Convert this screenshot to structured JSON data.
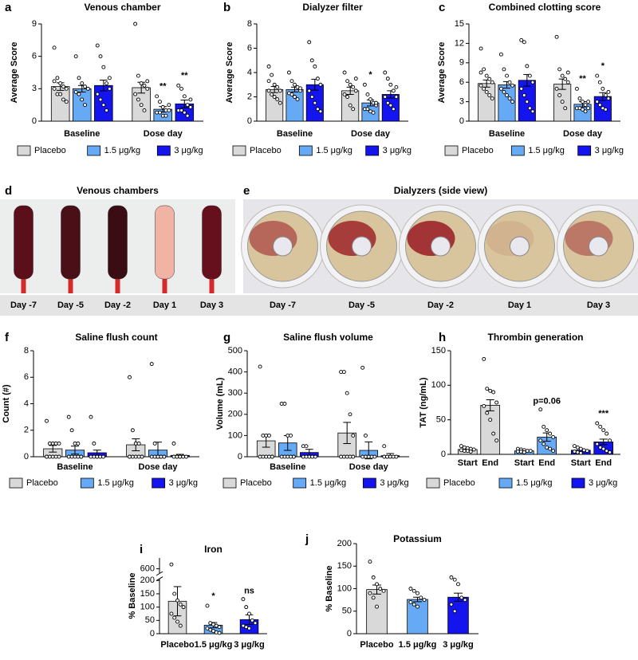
{
  "chart_data": [
    {
      "panel": "a",
      "type": "bar",
      "title": "Venous chamber",
      "y_label": "Average Score",
      "categories": [
        "Baseline",
        "Dose day"
      ],
      "ylim": [
        0,
        9
      ],
      "yticks": [
        0,
        3,
        6,
        9
      ],
      "legend": "bottom",
      "series": [
        {
          "name": "Placebo",
          "color": "#d9d9d9",
          "values": [
            3.2,
            3.1
          ],
          "errors": [
            0.35,
            0.5
          ],
          "points": [
            [
              6.8,
              4.0,
              3.5,
              3.2,
              3.0,
              3.0,
              2.5,
              2.5,
              2.0,
              1.8,
              3.7
            ],
            [
              9.0,
              4.2,
              3.5,
              3.3,
              3.0,
              2.5,
              2.0,
              1.5,
              1.0,
              3.7
            ]
          ]
        },
        {
          "name": "1.5 μg/kg",
          "color": "#66aaf5",
          "values": [
            3.0,
            1.1
          ],
          "errors": [
            0.3,
            0.25
          ],
          "points": [
            [
              6.0,
              4.0,
              3.5,
              3.2,
              3.0,
              2.7,
              2.5,
              2.0,
              1.5,
              3.0
            ],
            [
              2.3,
              1.8,
              1.3,
              1.0,
              1.0,
              0.8,
              0.8,
              0.5,
              0.5,
              1.5
            ]
          ],
          "annotations": [
            null,
            "**"
          ]
        },
        {
          "name": "3 μg/kg",
          "color": "#1414ee",
          "values": [
            3.3,
            1.6
          ],
          "errors": [
            0.5,
            0.35
          ],
          "points": [
            [
              7.0,
              6.0,
              5.0,
              3.5,
              3.0,
              2.5,
              2.0,
              1.5,
              1.0,
              4.0
            ],
            [
              3.3,
              3.0,
              2.3,
              1.5,
              1.3,
              1.0,
              1.0,
              0.8,
              0.5,
              2.0
            ]
          ],
          "annotations": [
            null,
            "**"
          ]
        }
      ]
    },
    {
      "panel": "b",
      "type": "bar",
      "title": "Dialyzer filter",
      "y_label": "Average Score",
      "categories": [
        "Baseline",
        "Dose day"
      ],
      "ylim": [
        0,
        8
      ],
      "yticks": [
        0,
        2,
        4,
        6,
        8
      ],
      "legend": "bottom",
      "series": [
        {
          "name": "Placebo",
          "color": "#d9d9d9",
          "values": [
            2.6,
            2.5
          ],
          "errors": [
            0.25,
            0.3
          ],
          "points": [
            [
              4.5,
              3.8,
              3.0,
              2.8,
              2.5,
              2.5,
              2.2,
              2.0,
              1.8,
              1.5,
              3.3
            ],
            [
              4.0,
              3.3,
              3.0,
              2.8,
              2.5,
              2.2,
              2.0,
              1.3,
              1.0,
              3.5
            ]
          ]
        },
        {
          "name": "1.5 μg/kg",
          "color": "#66aaf5",
          "values": [
            2.6,
            1.5
          ],
          "errors": [
            0.2,
            0.25
          ],
          "points": [
            [
              4.0,
              3.3,
              3.0,
              2.8,
              2.5,
              2.3,
              2.2,
              2.0,
              1.8,
              2.7
            ],
            [
              3.0,
              2.2,
              1.8,
              1.5,
              1.3,
              1.0,
              1.0,
              0.8,
              0.7,
              1.5
            ]
          ],
          "annotations": [
            null,
            "*"
          ]
        },
        {
          "name": "3 μg/kg",
          "color": "#1414ee",
          "values": [
            3.0,
            2.2
          ],
          "errors": [
            0.45,
            0.3
          ],
          "points": [
            [
              6.5,
              5.0,
              4.5,
              3.5,
              3.0,
              2.5,
              2.0,
              1.5,
              1.0,
              0.8
            ],
            [
              4.0,
              3.5,
              3.0,
              2.5,
              2.0,
              2.0,
              1.5,
              1.3,
              1.0,
              2.8
            ]
          ]
        }
      ]
    },
    {
      "panel": "c",
      "type": "bar",
      "title": "Combined clotting score",
      "y_label": "Average Score",
      "categories": [
        "Baseline",
        "Dose day"
      ],
      "ylim": [
        0,
        15
      ],
      "yticks": [
        0,
        3,
        6,
        9,
        12,
        15
      ],
      "legend": "bottom",
      "series": [
        {
          "name": "Placebo",
          "color": "#d9d9d9",
          "values": [
            5.8,
            5.7
          ],
          "errors": [
            0.55,
            0.8
          ],
          "points": [
            [
              11.2,
              8.0,
              7.0,
              6.5,
              6.0,
              5.5,
              5.0,
              4.5,
              4.0,
              3.5,
              7.5
            ],
            [
              13.0,
              8.0,
              7.0,
              6.5,
              6.0,
              5.0,
              4.0,
              3.0,
              2.0,
              7.5
            ]
          ]
        },
        {
          "name": "1.5 μg/kg",
          "color": "#66aaf5",
          "values": [
            5.6,
            2.6
          ],
          "errors": [
            0.5,
            0.4
          ],
          "points": [
            [
              10.3,
              8.0,
              7.0,
              6.0,
              5.5,
              5.0,
              4.5,
              4.0,
              3.5,
              3.0
            ],
            [
              5.0,
              3.5,
              3.0,
              2.5,
              2.0,
              2.0,
              2.0,
              1.8,
              1.5,
              3.0
            ]
          ],
          "annotations": [
            null,
            "**"
          ]
        },
        {
          "name": "3 μg/kg",
          "color": "#1414ee",
          "values": [
            6.3,
            3.8
          ],
          "errors": [
            0.9,
            0.6
          ],
          "points": [
            [
              12.5,
              12.2,
              8.5,
              7.0,
              6.0,
              5.0,
              4.0,
              3.0,
              2.0,
              1.5
            ],
            [
              7.0,
              6.0,
              5.0,
              4.0,
              3.5,
              3.0,
              2.5,
              2.0,
              1.8,
              4.5
            ]
          ],
          "annotations": [
            null,
            "*"
          ]
        }
      ]
    },
    {
      "panel": "f",
      "type": "bar",
      "title": "Saline flush count",
      "y_label": "Count (#)",
      "categories": [
        "Baseline",
        "Dose day"
      ],
      "ylim": [
        0,
        8
      ],
      "yticks": [
        0,
        2,
        4,
        6,
        8
      ],
      "legend": "bottom",
      "series": [
        {
          "name": "Placebo",
          "color": "#d9d9d9",
          "values": [
            0.6,
            0.9
          ],
          "errors": [
            0.25,
            0.45
          ],
          "points": [
            [
              2.7,
              1,
              1,
              1,
              1,
              0,
              0,
              0,
              0,
              0,
              0
            ],
            [
              6,
              2,
              1,
              1,
              0,
              0,
              0,
              0,
              0,
              0,
              0
            ]
          ]
        },
        {
          "name": "1.5 μg/kg",
          "color": "#66aaf5",
          "values": [
            0.5,
            0.5
          ],
          "errors": [
            0.3,
            0.6
          ],
          "points": [
            [
              3,
              2,
              1,
              1,
              0,
              0,
              0,
              0,
              0,
              0
            ],
            [
              7,
              1,
              0,
              0,
              0,
              0,
              0,
              0,
              0,
              0
            ]
          ]
        },
        {
          "name": "3 μg/kg",
          "color": "#1414ee",
          "values": [
            0.3,
            0.1
          ],
          "errors": [
            0.2,
            0.08
          ],
          "points": [
            [
              3,
              1,
              0,
              0,
              0,
              0,
              0,
              0
            ],
            [
              1,
              0,
              0,
              0,
              0,
              0,
              0,
              0
            ]
          ]
        }
      ]
    },
    {
      "panel": "g",
      "type": "bar",
      "title": "Saline flush volume",
      "y_label": "Volume (mL)",
      "categories": [
        "Baseline",
        "Dose day"
      ],
      "ylim": [
        0,
        500
      ],
      "yticks": [
        0,
        100,
        200,
        300,
        400,
        500
      ],
      "legend": "bottom",
      "series": [
        {
          "name": "Placebo",
          "color": "#d9d9d9",
          "values": [
            75,
            112
          ],
          "errors": [
            30,
            50
          ],
          "points": [
            [
              425,
              100,
              100,
              100,
              0,
              0,
              0,
              0,
              0,
              0
            ],
            [
              400,
              400,
              300,
              200,
              100,
              0,
              0,
              0,
              0,
              0
            ]
          ]
        },
        {
          "name": "1.5 μg/kg",
          "color": "#66aaf5",
          "values": [
            65,
            30
          ],
          "errors": [
            35,
            40
          ],
          "points": [
            [
              250,
              250,
              100,
              100,
              0,
              0,
              0,
              0,
              0,
              0
            ],
            [
              420,
              100,
              0,
              0,
              0,
              0,
              0,
              0
            ]
          ]
        },
        {
          "name": "3 μg/kg",
          "color": "#1414ee",
          "values": [
            20,
            5
          ],
          "errors": [
            15,
            10
          ],
          "points": [
            [
              50,
              50,
              0,
              0,
              0,
              0,
              0
            ],
            [
              50,
              0,
              0,
              0,
              0,
              0,
              0
            ]
          ]
        }
      ]
    },
    {
      "panel": "h",
      "type": "bar",
      "title": "Thrombin generation",
      "y_label": "TAT (ng/mL)",
      "categories": [
        "Start",
        "End"
      ],
      "group_by": "series",
      "ylim": [
        0,
        150
      ],
      "yticks": [
        0,
        50,
        100,
        150
      ],
      "legend": "bottom",
      "series": [
        {
          "name": "Placebo",
          "color": "#d9d9d9",
          "values": [
            7,
            71
          ],
          "errors": [
            1,
            8
          ],
          "points": [
            [
              12,
              10,
              9,
              8,
              7,
              6,
              5,
              5,
              4
            ],
            [
              138,
              95,
              92,
              90,
              75,
              70,
              60,
              50,
              30,
              20
            ]
          ]
        },
        {
          "name": "1.5 μg/kg",
          "color": "#66aaf5",
          "values": [
            5,
            25
          ],
          "errors": [
            1,
            6
          ],
          "points": [
            [
              8,
              7,
              6,
              5,
              5,
              4,
              4,
              3
            ],
            [
              65,
              40,
              35,
              30,
              25,
              20,
              15,
              10,
              8,
              5
            ]
          ],
          "annotations": [
            null,
            "p=0.06"
          ]
        },
        {
          "name": "3 μg/kg",
          "color": "#1414ee",
          "values": [
            6,
            18
          ],
          "errors": [
            2,
            4
          ],
          "points": [
            [
              12,
              10,
              8,
              6,
              5,
              4,
              3,
              2
            ],
            [
              45,
              40,
              35,
              30,
              20,
              15,
              10,
              8,
              5,
              3
            ]
          ],
          "annotations": [
            null,
            "***"
          ]
        }
      ]
    },
    {
      "panel": "i",
      "type": "bar",
      "title": "Iron",
      "y_label": "% Baseline",
      "categories": [
        "Placebo",
        "1.5 μg/kg",
        "3 μg/kg"
      ],
      "colors": [
        "#d9d9d9",
        "#66aaf5",
        "#1414ee"
      ],
      "values": [
        122,
        32,
        53
      ],
      "errors": [
        55,
        10,
        18
      ],
      "points": [
        [
          620,
          150,
          125,
          110,
          100,
          75,
          60,
          45,
          30
        ],
        [
          105,
          40,
          35,
          30,
          25,
          20,
          15,
          10,
          5,
          3
        ],
        [
          130,
          100,
          75,
          50,
          40,
          30,
          25,
          20
        ]
      ],
      "annotations": [
        null,
        "*",
        "ns"
      ],
      "ylim": [
        0,
        650
      ],
      "ybreak": [
        205,
        580
      ],
      "yticks": [
        0,
        50,
        100,
        150,
        200,
        600
      ]
    },
    {
      "panel": "j",
      "type": "bar",
      "title": "Potassium",
      "y_label": "% Baseline",
      "categories": [
        "Placebo",
        "1.5 μg/kg",
        "3 μg/kg"
      ],
      "colors": [
        "#d9d9d9",
        "#66aaf5",
        "#1414ee"
      ],
      "values": [
        98,
        76,
        81
      ],
      "errors": [
        10,
        5,
        9
      ],
      "points": [
        [
          160,
          125,
          110,
          100,
          95,
          90,
          80,
          60
        ],
        [
          100,
          95,
          90,
          80,
          75,
          70,
          65,
          60
        ],
        [
          125,
          120,
          110,
          80,
          75,
          65,
          50
        ]
      ],
      "ylim": [
        0,
        200
      ],
      "yticks": [
        0,
        50,
        100,
        150,
        200
      ]
    }
  ],
  "images": [
    {
      "panel": "d",
      "title": "Venous chambers",
      "captions": [
        "Day -7",
        "Day -5",
        "Day -2",
        "Day 1",
        "Day 3"
      ]
    },
    {
      "panel": "e",
      "title": "Dialyzers (side view)",
      "captions": [
        "Day -7",
        "Day -5",
        "Day -2",
        "Day 1",
        "Day 3"
      ]
    }
  ]
}
